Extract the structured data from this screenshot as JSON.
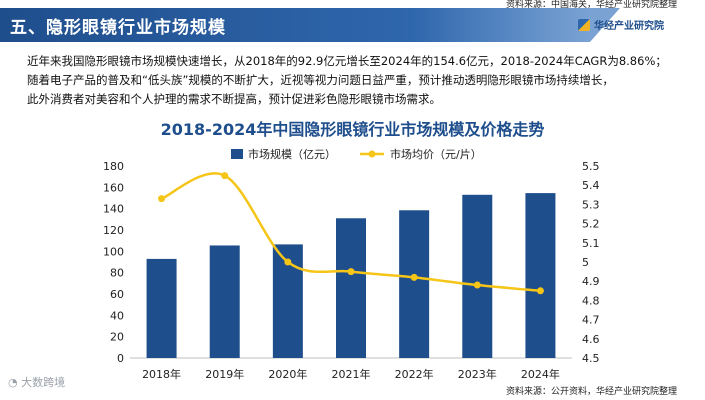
{
  "header": {
    "source_top": "资料来源：中国海关，华经产业研究院整理",
    "title": "五、隐形眼镜行业市场规模",
    "brand": "华经产业研究院"
  },
  "description": [
    "近年来我国隐形眼镜市场规模快速增长，从2018年的92.9亿元增长至2024年的154.6亿元，2018-2024年CAGR为8.86%；",
    "随着电子产品的普及和“低头族”规模的不断扩大，近视等视力问题日益严重，预计推动透明隐形眼镜市场持续增长，",
    "此外消费者对美容和个人护理的需求不断提高，预计促进彩色隐形眼镜市场需求。"
  ],
  "footer": {
    "source_bottom": "资料来源：公开资料，华经产业研究院整理",
    "watermark_text": "大数跨境"
  },
  "colors": {
    "bar": "#1f4e8c",
    "line": "#f5c518",
    "title": "#1f4e8c"
  },
  "chart_data": {
    "type": "bar+line",
    "title": "2018-2024年中国隐形眼镜行业市场规模及价格走势",
    "categories": [
      "2018年",
      "2019年",
      "2020年",
      "2021年",
      "2022年",
      "2023年",
      "2024年"
    ],
    "series": [
      {
        "name": "市场规模（亿元）",
        "type": "bar",
        "axis": "left",
        "values": [
          92.9,
          105.5,
          106.5,
          131.0,
          138.5,
          153.0,
          154.6
        ]
      },
      {
        "name": "市场均价（元/片）",
        "type": "line",
        "axis": "right",
        "values": [
          5.33,
          5.45,
          5.0,
          4.95,
          4.92,
          4.88,
          4.85
        ]
      }
    ],
    "y_left": {
      "min": 0,
      "max": 180,
      "step": 20,
      "ticks": [
        "0",
        "20",
        "40",
        "60",
        "80",
        "100",
        "120",
        "140",
        "160",
        "180"
      ]
    },
    "y_right": {
      "min": 4.5,
      "max": 5.5,
      "step": 0.1,
      "ticks": [
        "4.5",
        "4.6",
        "4.7",
        "4.8",
        "4.9",
        "5",
        "5.1",
        "5.2",
        "5.3",
        "5.4",
        "5.5"
      ]
    },
    "legend_position": "top-center",
    "grid": false
  }
}
